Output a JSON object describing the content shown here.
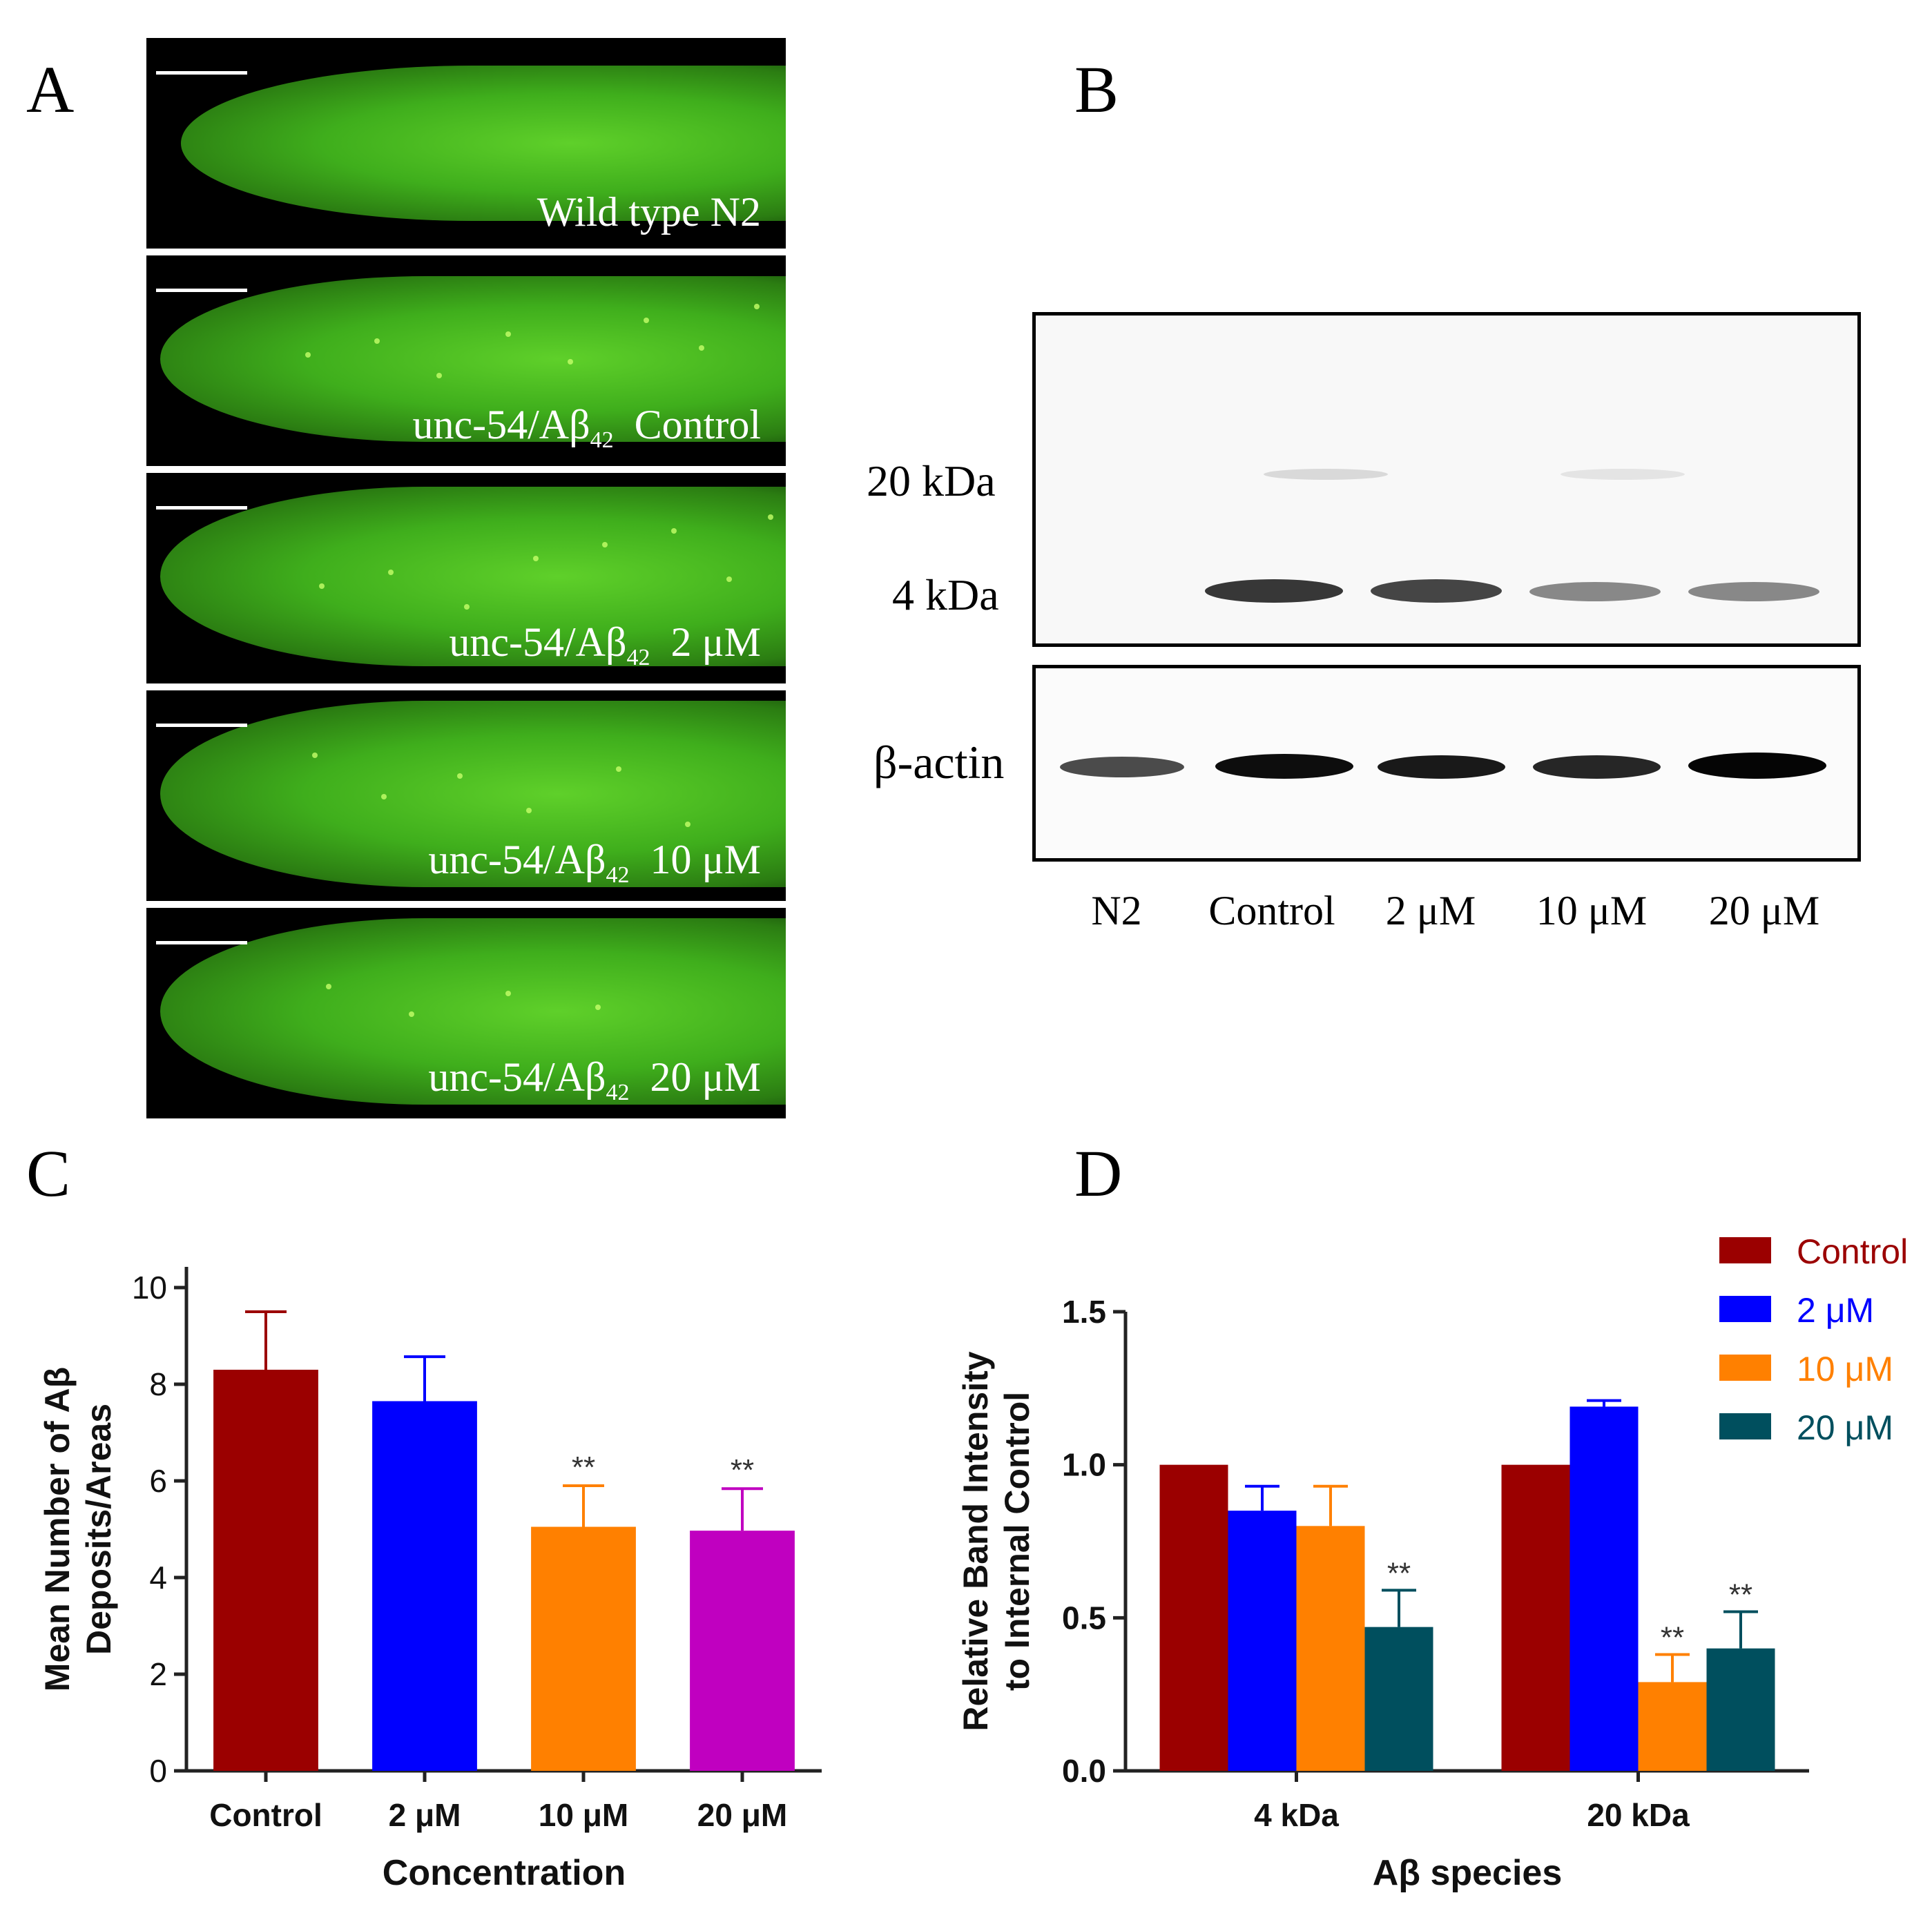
{
  "panels": {
    "a": "A",
    "b": "B",
    "c": "C",
    "d": "D"
  },
  "micrographs": [
    {
      "prefix": "Wild type N2",
      "sub": "",
      "dose": ""
    },
    {
      "prefix": "unc-54/Aβ",
      "sub": "42",
      "dose": "Control"
    },
    {
      "prefix": "unc-54/Aβ",
      "sub": "42",
      "dose": "2 μM"
    },
    {
      "prefix": "unc-54/Aβ",
      "sub": "42",
      "dose": "10 μM"
    },
    {
      "prefix": "unc-54/Aβ",
      "sub": "42",
      "dose": "20 μM"
    }
  ],
  "blot": {
    "marker_20": "20 kDa",
    "marker_4": "4 kDa",
    "loading_control": "β-actin",
    "lanes": [
      "N2",
      "Control",
      "2 μM",
      "10 μM",
      "20 μM"
    ]
  },
  "chart_data": [
    {
      "type": "bar",
      "panel": "C",
      "categories": [
        "Control",
        "2 μM",
        "10 μM",
        "20 μM"
      ],
      "values": [
        8.3,
        7.65,
        5.05,
        4.97
      ],
      "errors": [
        1.2,
        0.92,
        0.85,
        0.87
      ],
      "colors": [
        "#9b0000",
        "#0000ff",
        "#ff8000",
        "#c000c0"
      ],
      "significance": [
        "",
        "",
        "**",
        "**"
      ],
      "xlabel": "Concentration",
      "ylabel": [
        "Mean Number of Aβ",
        "Deposits/Areas"
      ],
      "ylim": [
        0,
        10
      ],
      "yticks": [
        "0",
        "2",
        "4",
        "6",
        "8",
        "10"
      ],
      "grid": false
    },
    {
      "type": "bar",
      "panel": "D",
      "categories": [
        "4 kDa",
        "20 kDa"
      ],
      "series": [
        {
          "name": "Control",
          "color": "#9b0000",
          "values": [
            1.0,
            1.0
          ],
          "errors": [
            0,
            0
          ],
          "significance": [
            "",
            ""
          ]
        },
        {
          "name": "2 μM",
          "color": "#0000ff",
          "values": [
            0.85,
            1.19
          ],
          "errors": [
            0.08,
            0.02
          ],
          "significance": [
            "",
            ""
          ]
        },
        {
          "name": "10 μM",
          "color": "#ff8000",
          "values": [
            0.8,
            0.29
          ],
          "errors": [
            0.13,
            0.09
          ],
          "significance": [
            "",
            "**"
          ]
        },
        {
          "name": "20 μM",
          "color": "#004f5e",
          "values": [
            0.47,
            0.4
          ],
          "errors": [
            0.12,
            0.12
          ],
          "significance": [
            "**",
            "**"
          ]
        }
      ],
      "xlabel": "Aβ species",
      "ylabel": [
        "Relative Band Intensity",
        "to Internal Control"
      ],
      "ylim": [
        0,
        1.5
      ],
      "yticks": [
        "0.0",
        "0.5",
        "1.0",
        "1.5"
      ],
      "legend_position": "top-right",
      "grid": false
    }
  ]
}
